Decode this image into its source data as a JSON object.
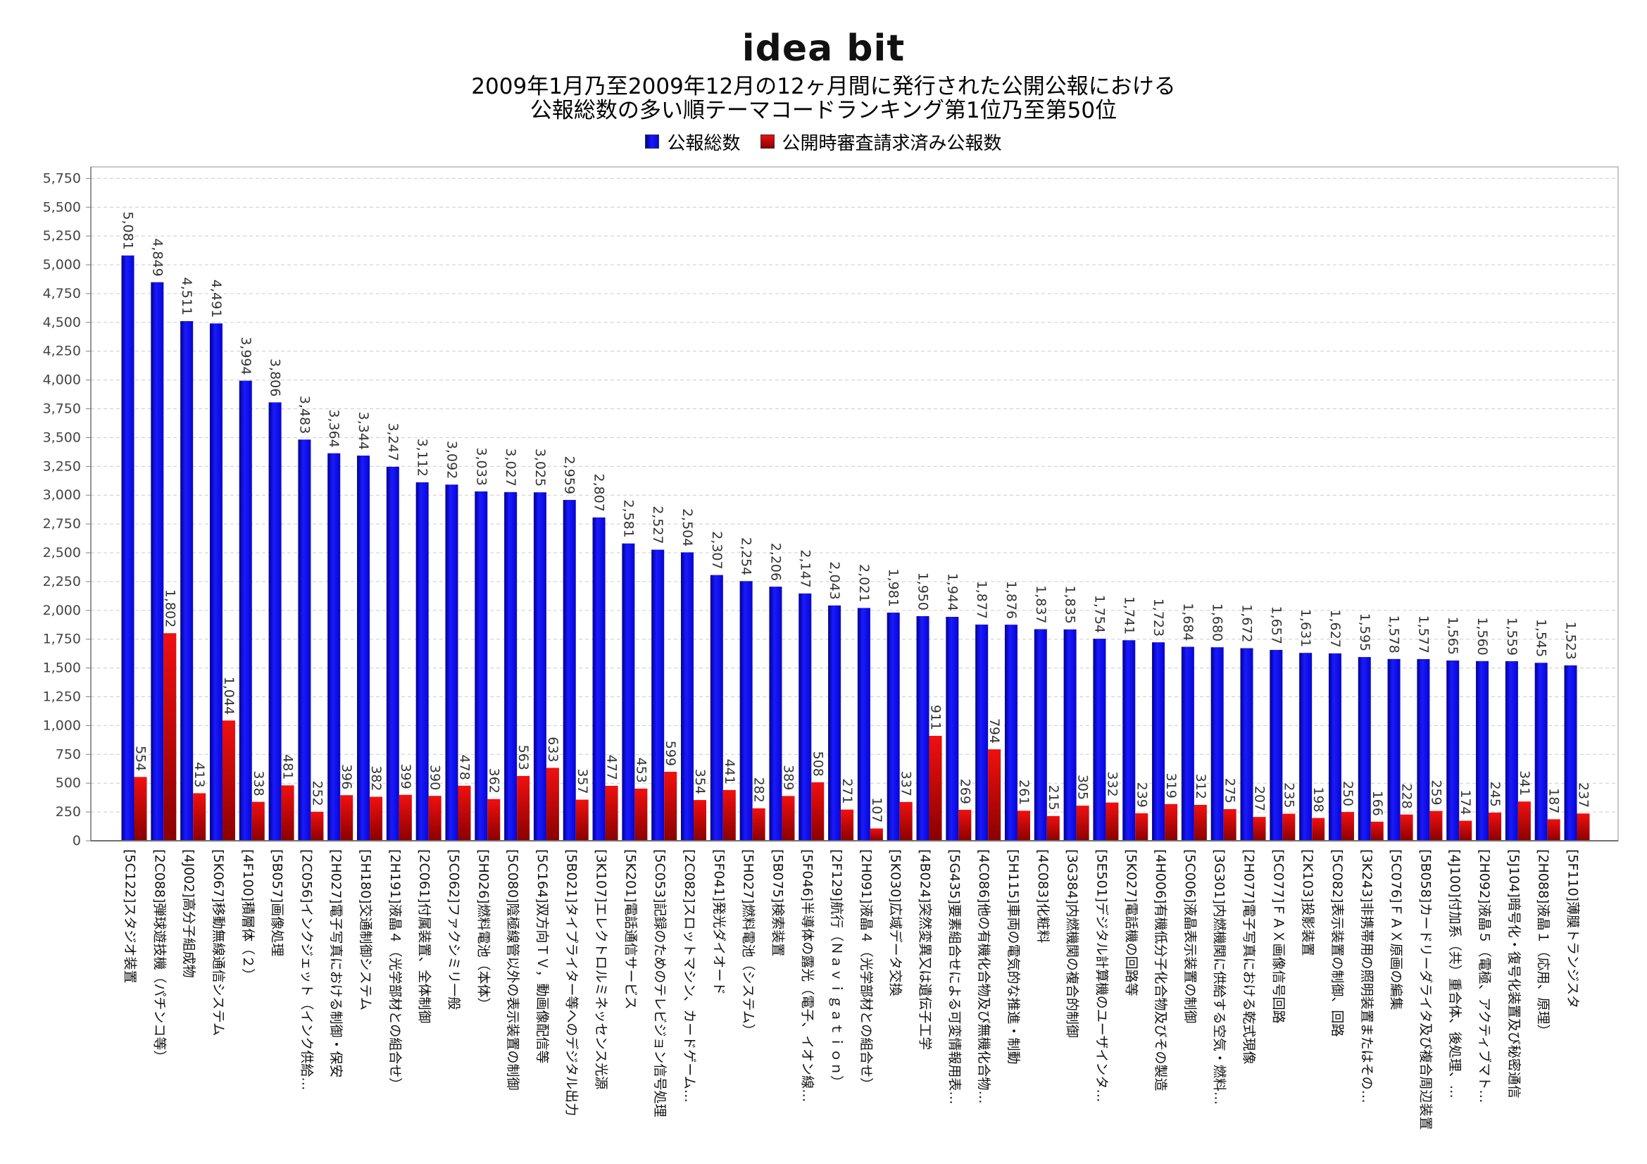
{
  "logo_text": "idea bit",
  "chart_data": {
    "type": "bar",
    "title": [
      "2009年1月乃至2009年12月の12ヶ月間に発行された公開公報における",
      "公報総数の多い順テーマコードランキング第1位乃至第50位"
    ],
    "legend": "top",
    "grid": true,
    "ylim": [
      0,
      5850
    ],
    "y_ticks": [
      0,
      250,
      500,
      750,
      1000,
      1250,
      1500,
      1750,
      2000,
      2250,
      2500,
      2750,
      3000,
      3250,
      3500,
      3750,
      4000,
      4250,
      4500,
      4750,
      5000,
      5250,
      5500,
      5750
    ],
    "categories": [
      "[5C122]スタジオ装置",
      "[2C088]弾球遊技機（パチンコ等）",
      "[4J002]高分子組成物",
      "[5K067]移動無線通信システム",
      "[4F100]積層体（２）",
      "[5B057]画像処理",
      "[2C056]インクジェット（インク供給…",
      "[2H027]電子写真における制御・保安",
      "[5H180]交通制御システム",
      "[2H191]液晶４（光学部材との組合せ）",
      "[2C061]付属装置、全体制御",
      "[5C062]ファクシミリ一般",
      "[5H026]燃料電池（本体）",
      "[5C080]陰極線管以外の表示装置の制御",
      "[5C164]双方向ＴＶ，動画像配信等",
      "[5B021]タイプライター等へのデジタル出力",
      "[3K107]エレクトロルミネッセンス光源",
      "[5K201]電話通信サービス",
      "[5C053]記録のためのテレビジョン信号処理",
      "[2C082]スロットマシン、カードゲーム…",
      "[5F041]発光ダイオード",
      "[5H027]燃料電池（システム）",
      "[5B075]検索装置",
      "[5F046]半導体の露光（電子、イオン線…",
      "[2F129]航行（Ｎａｖｉｇａｔｉｏｎ）",
      "[2H091]液晶４（光学部材との組合せ）",
      "[5K030]広域データ交換",
      "[4B024]突然変異又は遺伝子工学",
      "[5G435]要素組合せによる可変情報用表…",
      "[4C086]他の有機化合物及び無機化合物…",
      "[5H115]車両の電気的な推進・制動",
      "[4C083]化粧料",
      "[3G384]内燃機関の複合的制御",
      "[5E501]デジタル計算機のユーザインタ…",
      "[5K027]電話機の回路等",
      "[4H006]有機低分子化合物及びその製造",
      "[5C006]液晶表示装置の制御",
      "[3G301]内燃機関に供給する空気・燃料…",
      "[2H077]電子写真における乾式現像",
      "[5C077]ＦＡＸ画像信号回路",
      "[2K103]投影装置",
      "[5C082]表示装置の制御、回路",
      "[3K243]非携帯用の照明装置またはその…",
      "[5C076]ＦＡＸ原画の編集",
      "[5B058]カードリーダライタ及び複合周辺装置",
      "[4J100]付加系（共）重合体、後処理、…",
      "[2H092]液晶５（電極、アクティブマト…",
      "[5J104]暗号化・復号化装置及び秘密通信",
      "[2H088]液晶１（応用、原理）",
      "[5F110]薄膜トランジスタ"
    ],
    "series": [
      {
        "name": "公報総数",
        "color": "#1a1aff",
        "values": [
          5081,
          4849,
          4511,
          4491,
          3994,
          3806,
          3483,
          3364,
          3344,
          3247,
          3112,
          3092,
          3033,
          3027,
          3025,
          2959,
          2807,
          2581,
          2527,
          2504,
          2307,
          2254,
          2206,
          2147,
          2043,
          2021,
          1981,
          1950,
          1944,
          1877,
          1876,
          1837,
          1835,
          1754,
          1741,
          1723,
          1684,
          1680,
          1672,
          1657,
          1631,
          1627,
          1595,
          1578,
          1577,
          1565,
          1560,
          1559,
          1545,
          1523
        ]
      },
      {
        "name": "公開時審査請求済み公報数",
        "color": "#f01010",
        "values": [
          554,
          1802,
          413,
          1044,
          338,
          481,
          252,
          396,
          382,
          399,
          390,
          478,
          362,
          563,
          633,
          357,
          477,
          453,
          599,
          354,
          441,
          282,
          389,
          508,
          271,
          107,
          337,
          911,
          269,
          794,
          261,
          215,
          305,
          332,
          239,
          319,
          312,
          275,
          207,
          235,
          198,
          250,
          166,
          228,
          259,
          174,
          245,
          341,
          187,
          237
        ]
      }
    ]
  }
}
